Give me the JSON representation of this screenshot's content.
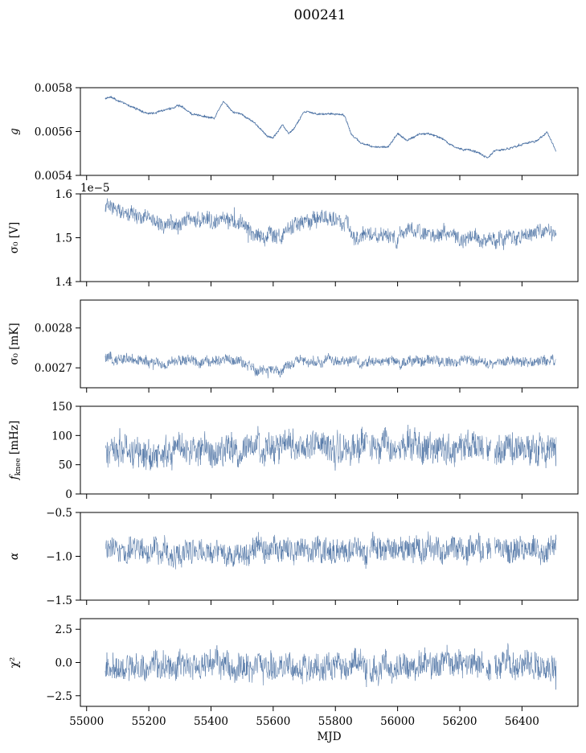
{
  "figure": {
    "title": "000241"
  },
  "colors": {
    "series": "#4c72a4",
    "frame": "#000000"
  },
  "chart_data": [
    {
      "type": "line",
      "ylabel": "g",
      "ylabel_style": "italic",
      "ylim": [
        0.0054,
        0.0058
      ],
      "yticks": [
        0.0054,
        0.0056,
        0.0058
      ],
      "ytick_labels": [
        "0.0054",
        "0.0056",
        "0.0058"
      ],
      "x": [
        55060,
        55080,
        55100,
        55150,
        55200,
        55260,
        55300,
        55340,
        55380,
        55410,
        55440,
        55470,
        55500,
        55540,
        55580,
        55600,
        55630,
        55650,
        55670,
        55700,
        55750,
        55790,
        55810,
        55830,
        55850,
        55880,
        55920,
        55970,
        56000,
        56030,
        56070,
        56100,
        56140,
        56170,
        56200,
        56250,
        56290,
        56310,
        56350,
        56400,
        56450,
        56480,
        56510
      ],
      "y": [
        0.00575,
        0.00576,
        0.00574,
        0.00571,
        0.00568,
        0.0057,
        0.00572,
        0.00568,
        0.00567,
        0.00566,
        0.00574,
        0.00569,
        0.00568,
        0.00564,
        0.00558,
        0.00557,
        0.00563,
        0.00559,
        0.00562,
        0.00569,
        0.00568,
        0.00568,
        0.00568,
        0.00567,
        0.00559,
        0.00555,
        0.00553,
        0.00553,
        0.00559,
        0.00556,
        0.00559,
        0.00559,
        0.00557,
        0.00554,
        0.00552,
        0.00551,
        0.00548,
        0.00551,
        0.00552,
        0.00554,
        0.00556,
        0.0056,
        0.00551
      ],
      "noise": 4e-06,
      "line_width": 0.8,
      "gaps": []
    },
    {
      "type": "line",
      "ylabel": "σ₀ [V]",
      "ylim": [
        1.4e-05,
        1.6e-05
      ],
      "yticks": [
        1.4e-05,
        1.5e-05,
        1.6e-05
      ],
      "ytick_labels": [
        "1.4",
        "1.5",
        "1.6"
      ],
      "offset_label": "1e−5",
      "x": [
        55060,
        55100,
        55150,
        55200,
        55250,
        55300,
        55350,
        55400,
        55450,
        55500,
        55540,
        55580,
        55620,
        55650,
        55700,
        55750,
        55800,
        55840,
        55860,
        55900,
        55950,
        56000,
        56030,
        56070,
        56100,
        56150,
        56200,
        56250,
        56290,
        56320,
        56350,
        56400,
        56450,
        56480,
        56510
      ],
      "y": [
        1.572e-05,
        1.562e-05,
        1.548e-05,
        1.542e-05,
        1.533e-05,
        1.538e-05,
        1.543e-05,
        1.54e-05,
        1.538e-05,
        1.532e-05,
        1.512e-05,
        1.502e-05,
        1.506e-05,
        1.522e-05,
        1.538e-05,
        1.542e-05,
        1.54e-05,
        1.532e-05,
        1.502e-05,
        1.505e-05,
        1.508e-05,
        1.502e-05,
        1.518e-05,
        1.522e-05,
        1.512e-05,
        1.512e-05,
        1.5e-05,
        1.5e-05,
        1.495e-05,
        1.497e-05,
        1.502e-05,
        1.505e-05,
        1.51e-05,
        1.515e-05,
        1.512e-05
      ],
      "noise": 1.5e-07,
      "line_width": 0.5,
      "gaps": []
    },
    {
      "type": "line",
      "ylabel": "σ₀ [mK]",
      "ylim": [
        0.00265,
        0.00287
      ],
      "yticks": [
        0.0027,
        0.0028
      ],
      "ytick_labels": [
        "0.0027",
        "0.0028"
      ],
      "x": [
        55060,
        55100,
        55150,
        55200,
        55250,
        55300,
        55350,
        55400,
        55450,
        55500,
        55540,
        55580,
        55620,
        55650,
        55700,
        55750,
        55800,
        55850,
        55900,
        55950,
        56000,
        56050,
        56100,
        56150,
        56200,
        56250,
        56300,
        56350,
        56400,
        56450,
        56510
      ],
      "y": [
        0.002722,
        0.002722,
        0.002718,
        0.002714,
        0.002712,
        0.002718,
        0.002714,
        0.002716,
        0.002722,
        0.002712,
        0.002694,
        0.002698,
        0.002684,
        0.002712,
        0.002716,
        0.002718,
        0.002722,
        0.002716,
        0.002712,
        0.002718,
        0.002714,
        0.002716,
        0.002718,
        0.002714,
        0.00272,
        0.002716,
        0.002714,
        0.002716,
        0.002714,
        0.002716,
        0.002718
      ],
      "noise": 1.1e-05,
      "line_width": 0.5,
      "gaps": []
    },
    {
      "type": "line",
      "ylabel": "f_knee [mHz]",
      "ylim": [
        0,
        150
      ],
      "yticks": [
        0,
        50,
        100,
        150
      ],
      "ytick_labels": [
        "0",
        "50",
        "100",
        "150"
      ],
      "x": [
        55060,
        55200,
        55400,
        55500,
        55550,
        55600,
        55700,
        55800,
        55900,
        55950,
        56000,
        56100,
        56150,
        56200,
        56250,
        56300,
        56400,
        56510
      ],
      "y": [
        70,
        70,
        72,
        75,
        78,
        80,
        82,
        80,
        80,
        80,
        82,
        80,
        78,
        75,
        74,
        72,
        75,
        75
      ],
      "noise": 22,
      "line_width": 0.5,
      "gaps": [
        [
          55904,
          55910
        ],
        [
          56278,
          56285
        ],
        [
          56300,
          56312
        ]
      ]
    },
    {
      "type": "line",
      "ylabel": "α",
      "ylabel_style": "italic",
      "ylim": [
        -1.5,
        -0.5
      ],
      "yticks": [
        -1.5,
        -1.0,
        -0.5
      ],
      "ytick_labels": [
        "−1.5",
        "−1.0",
        "−0.5"
      ],
      "x": [
        55060,
        55200,
        55300,
        55400,
        55450,
        55500,
        55600,
        55700,
        55800,
        55900,
        56000,
        56100,
        56200,
        56300,
        56400,
        56510
      ],
      "y": [
        -0.92,
        -0.92,
        -0.93,
        -0.95,
        -0.98,
        -0.95,
        -0.94,
        -0.93,
        -0.93,
        -0.94,
        -0.93,
        -0.92,
        -0.92,
        -0.93,
        -0.93,
        -0.92
      ],
      "noise": 0.12,
      "line_width": 0.5,
      "gaps": [
        [
          55904,
          55910
        ],
        [
          56278,
          56285
        ],
        [
          56300,
          56312
        ]
      ]
    },
    {
      "type": "line",
      "ylabel": "χ²",
      "ylim": [
        -3.3,
        3.3
      ],
      "yticks": [
        -2.5,
        0.0,
        2.5
      ],
      "ytick_labels": [
        "−2.5",
        "0.0",
        "2.5"
      ],
      "xlabel": "MJD",
      "xlim": [
        54980,
        56580
      ],
      "xticks": [
        55000,
        55200,
        55400,
        55600,
        55800,
        56000,
        56200,
        56400
      ],
      "xtick_labels": [
        "55000",
        "55200",
        "55400",
        "55600",
        "55800",
        "56000",
        "56200",
        "56400"
      ],
      "x": [
        55060,
        55300,
        55600,
        55900,
        56200,
        56510
      ],
      "y": [
        -0.3,
        -0.3,
        -0.35,
        -0.3,
        -0.3,
        -0.3
      ],
      "noise": 0.9,
      "line_width": 0.5,
      "gaps": [
        [
          55904,
          55910
        ],
        [
          56278,
          56285
        ],
        [
          56300,
          56312
        ]
      ]
    }
  ]
}
